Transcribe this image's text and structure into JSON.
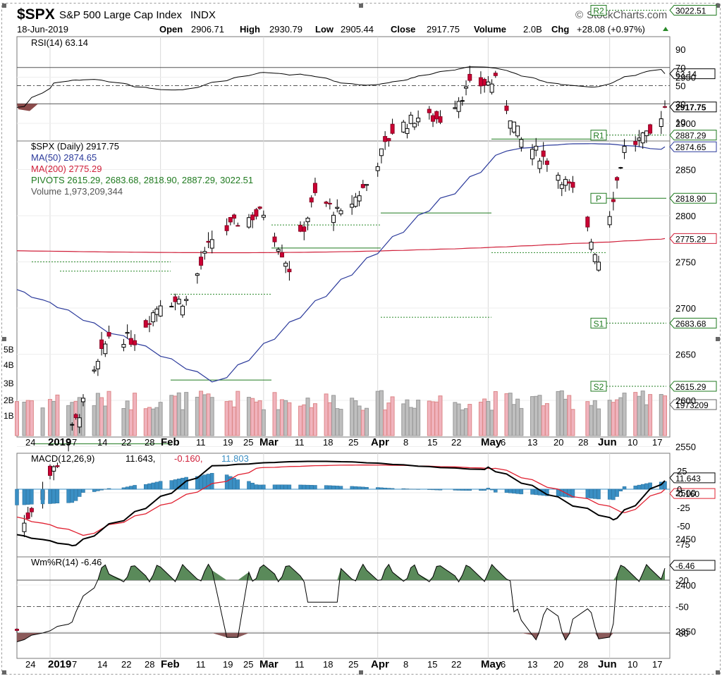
{
  "header": {
    "symbol": "$SPX",
    "name": "S&P 500 Large Cap Index",
    "exchange": "INDX",
    "watermark": "StockCharts.com",
    "date": "18-Jun-2019",
    "open_label": "Open",
    "open": "2906.71",
    "high_label": "High",
    "high": "2930.79",
    "low_label": "Low",
    "low": "2905.44",
    "close_label": "Close",
    "close": "2917.75",
    "volume_label": "Volume",
    "volume": "2.0B",
    "chg_label": "Chg",
    "chg": "+28.08 (+0.97%)"
  },
  "colors": {
    "up_candle": "#ffffff",
    "down_candle": "#cc0033",
    "ma50": "#2b3a9b",
    "ma200": "#d0203a",
    "pivot": "#1f7a1f",
    "macd_hist": "#3a8fc4",
    "wmr_fill": "#5a8a5a",
    "rsi_fill": "#8a4a4a"
  },
  "rsi": {
    "legend": "RSI(14) 63.14",
    "current": "63.14",
    "ticks": [
      "90",
      "70",
      "50",
      "30",
      "10"
    ]
  },
  "price": {
    "legend_main": "$SPX (Daily) 2917.75",
    "legend_ma50": "MA(50) 2874.65",
    "legend_ma200": "MA(200) 2775.29",
    "legend_pivots": "PIVOTS 2615.29, 2683.68, 2818.90, 2887.29, 3022.51",
    "legend_volume": "Volume 1,973,209,344",
    "ticks": [
      "2950",
      "2900",
      "2850",
      "2800",
      "2750",
      "2700",
      "2650",
      "2600",
      "2550",
      "2500",
      "2450",
      "2400",
      "2350"
    ],
    "vol_ticks": [
      "5B",
      "4B",
      "3B",
      "2B",
      "1B"
    ],
    "pivot_labels": [
      "R2",
      "R1",
      "P",
      "S1",
      "S2"
    ],
    "tags": [
      "3022.51",
      "2917.75",
      "2887.29",
      "2874.65",
      "2818.90",
      "2775.29",
      "2683.68",
      "2615.29",
      "1973209"
    ]
  },
  "macd": {
    "legend_prefix": "MACD(12,26,9)",
    "macd_value": "11.643,",
    "signal_value": "-0.160,",
    "hist_value": "11.803",
    "ticks": [
      "25",
      "0",
      "-25",
      "-50",
      "-75"
    ],
    "tags": [
      "11.643",
      "-0.160"
    ]
  },
  "wmr": {
    "legend": "Wm%R(14) -6.46",
    "current": "-6.46",
    "ticks": [
      "-20",
      "-50",
      "-80"
    ]
  },
  "xaxis": [
    "24",
    "2019",
    "7",
    "14",
    "22",
    "28",
    "Feb",
    "11",
    "19",
    "25",
    "Mar",
    "11",
    "18",
    "25",
    "Apr",
    "8",
    "15",
    "22",
    "May",
    "6",
    "13",
    "20",
    "28",
    "Jun",
    "10",
    "17"
  ],
  "chart_data": {
    "type": "candlestick",
    "title": "$SPX S&P 500 Large Cap Index INDX",
    "x_range": [
      "2018-12-24",
      "2019-06-18"
    ],
    "close_series": [
      {
        "date": "2018-12-24",
        "close": 2351
      },
      {
        "date": "2018-12-26",
        "close": 2467
      },
      {
        "date": "2018-12-31",
        "close": 2507
      },
      {
        "date": "2019-01-04",
        "close": 2532
      },
      {
        "date": "2019-01-11",
        "close": 2596
      },
      {
        "date": "2019-01-18",
        "close": 2671
      },
      {
        "date": "2019-01-25",
        "close": 2665
      },
      {
        "date": "2019-02-01",
        "close": 2707
      },
      {
        "date": "2019-02-08",
        "close": 2708
      },
      {
        "date": "2019-02-15",
        "close": 2775
      },
      {
        "date": "2019-02-22",
        "close": 2793
      },
      {
        "date": "2019-03-01",
        "close": 2804
      },
      {
        "date": "2019-03-08",
        "close": 2743
      },
      {
        "date": "2019-03-15",
        "close": 2822
      },
      {
        "date": "2019-03-22",
        "close": 2800
      },
      {
        "date": "2019-03-29",
        "close": 2834
      },
      {
        "date": "2019-04-05",
        "close": 2892
      },
      {
        "date": "2019-04-12",
        "close": 2907
      },
      {
        "date": "2019-04-18",
        "close": 2905
      },
      {
        "date": "2019-04-26",
        "close": 2940
      },
      {
        "date": "2019-05-03",
        "close": 2945
      },
      {
        "date": "2019-05-10",
        "close": 2881
      },
      {
        "date": "2019-05-17",
        "close": 2860
      },
      {
        "date": "2019-05-24",
        "close": 2826
      },
      {
        "date": "2019-05-31",
        "close": 2752
      },
      {
        "date": "2019-06-07",
        "close": 2873
      },
      {
        "date": "2019-06-14",
        "close": 2887
      },
      {
        "date": "2019-06-18",
        "close": 2917.75
      }
    ],
    "ma50_last": 2874.65,
    "ma200_last": 2775.29,
    "pivots": {
      "S2": 2615.29,
      "S1": 2683.68,
      "P": 2818.9,
      "R1": 2887.29,
      "R2": 3022.51
    },
    "rsi_last": 63.14,
    "macd_last": {
      "macd": 11.643,
      "signal": -0.16,
      "histogram": 11.803
    },
    "wmr_last": -6.46,
    "volume_last": 1973209344,
    "ylim_price": [
      2330,
      3040
    ]
  }
}
